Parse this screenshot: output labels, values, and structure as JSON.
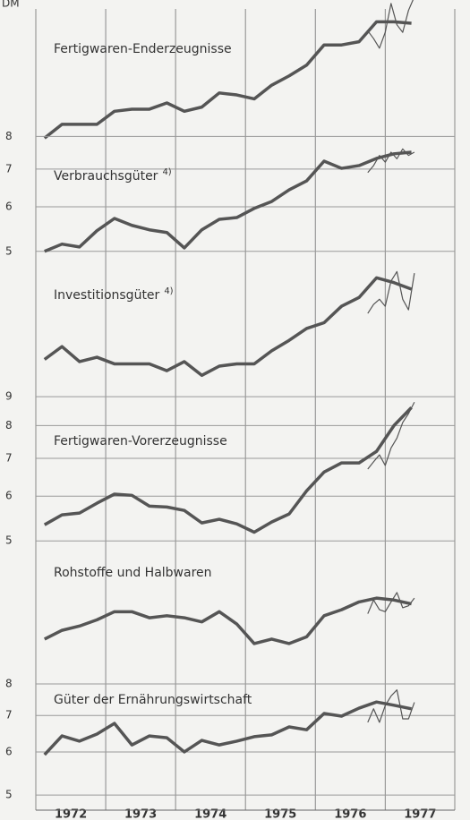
{
  "unit_label": "DM",
  "chart_data": [
    {
      "type": "line",
      "title": "Fertigwaren-Enderzeugnisse",
      "log_scale": true,
      "color": "#555555",
      "x": [
        1972.125,
        1972.375,
        1972.625,
        1972.875,
        1973.125,
        1973.375,
        1973.625,
        1973.875,
        1974.125,
        1974.375,
        1974.625,
        1974.875,
        1975.125,
        1975.375,
        1975.625,
        1975.875,
        1976.125,
        1976.375,
        1976.625,
        1976.875,
        1977.125,
        1977.375
      ],
      "values": [
        10.4,
        11.0,
        11.0,
        11.0,
        11.6,
        11.7,
        11.7,
        12.0,
        11.6,
        11.8,
        12.5,
        12.4,
        12.2,
        12.9,
        13.4,
        14.0,
        15.2,
        15.2,
        15.4,
        16.7,
        16.7,
        16.6
      ],
      "monthly_x": [
        1976.75,
        1976.833,
        1976.917,
        1977.0,
        1977.083,
        1977.167,
        1977.25,
        1977.333,
        1977.417
      ],
      "monthly_values": [
        16.1,
        15.6,
        15.0,
        16.0,
        18.0,
        16.5,
        16.0,
        17.5,
        18.5
      ],
      "ylim": [
        10,
        17.6
      ]
    },
    {
      "type": "line",
      "title": "Verbrauchsgüter",
      "note": "4)",
      "log_scale": true,
      "color": "#555555",
      "x": [
        1972.125,
        1972.375,
        1972.625,
        1972.875,
        1973.125,
        1973.375,
        1973.625,
        1973.875,
        1974.125,
        1974.375,
        1974.625,
        1974.875,
        1975.125,
        1975.375,
        1975.625,
        1975.875,
        1976.125,
        1976.375,
        1976.625,
        1976.875,
        1977.125,
        1977.375
      ],
      "values": [
        5.0,
        5.15,
        5.09,
        5.44,
        5.72,
        5.56,
        5.46,
        5.4,
        5.07,
        5.46,
        5.7,
        5.74,
        5.96,
        6.13,
        6.43,
        6.67,
        7.23,
        7.02,
        7.1,
        7.31,
        7.45,
        7.5
      ],
      "monthly_x": [
        1976.75,
        1976.833,
        1976.917,
        1977.0,
        1977.083,
        1977.167,
        1977.25,
        1977.333,
        1977.417
      ],
      "monthly_values": [
        6.9,
        7.1,
        7.4,
        7.2,
        7.5,
        7.3,
        7.6,
        7.4,
        7.5
      ],
      "ylim": [
        4.66,
        8.37
      ],
      "yticks": [
        5,
        6,
        7,
        8
      ],
      "grid": true
    },
    {
      "type": "line",
      "title": "Investitionsgüter",
      "note": "4)",
      "log_scale": true,
      "color": "#555555",
      "x": [
        1972.125,
        1972.375,
        1972.625,
        1972.875,
        1973.125,
        1973.375,
        1973.625,
        1973.875,
        1974.125,
        1974.375,
        1974.625,
        1974.875,
        1975.125,
        1975.375,
        1975.625,
        1975.875,
        1976.125,
        1976.375,
        1976.625,
        1976.875,
        1977.125,
        1977.375
      ],
      "values": [
        11.1,
        11.7,
        11.0,
        11.2,
        10.9,
        10.9,
        10.9,
        10.6,
        11.0,
        10.4,
        10.8,
        10.9,
        10.9,
        11.5,
        12.0,
        12.6,
        12.9,
        13.8,
        14.3,
        15.5,
        15.2,
        14.8
      ],
      "monthly_x": [
        1976.75,
        1976.833,
        1976.917,
        1977.0,
        1977.083,
        1977.167,
        1977.25,
        1977.333,
        1977.417
      ],
      "monthly_values": [
        13.4,
        13.9,
        14.2,
        13.8,
        15.3,
        15.9,
        14.2,
        13.6,
        15.8
      ],
      "ylim": [
        10,
        16.1
      ]
    },
    {
      "type": "line",
      "title": "Fertigwaren-Vorerzeugnisse",
      "log_scale": true,
      "color": "#555555",
      "x": [
        1972.125,
        1972.375,
        1972.625,
        1972.875,
        1973.125,
        1973.375,
        1973.625,
        1973.875,
        1974.125,
        1974.375,
        1974.625,
        1974.875,
        1975.125,
        1975.375,
        1975.625,
        1975.875,
        1976.125,
        1976.375,
        1976.625,
        1976.875,
        1977.125,
        1977.375
      ],
      "values": [
        5.34,
        5.56,
        5.6,
        5.83,
        6.05,
        6.02,
        5.76,
        5.74,
        5.66,
        5.38,
        5.46,
        5.36,
        5.18,
        5.4,
        5.58,
        6.13,
        6.62,
        6.87,
        6.87,
        7.2,
        8.0,
        8.61
      ],
      "monthly_x": [
        1976.75,
        1976.833,
        1976.917,
        1977.0,
        1977.083,
        1977.167,
        1977.25,
        1977.333,
        1977.417
      ],
      "monthly_values": [
        6.7,
        6.9,
        7.1,
        6.8,
        7.3,
        7.6,
        8.1,
        8.4,
        8.8
      ],
      "ylim": [
        4.72,
        9.44
      ],
      "yticks": [
        5,
        6,
        7,
        8,
        9
      ],
      "grid": true
    },
    {
      "type": "line",
      "title": "Rohstoffe und Halbwaren",
      "log_scale": true,
      "color": "#555555",
      "x": [
        1972.125,
        1972.375,
        1972.625,
        1972.875,
        1973.125,
        1973.375,
        1973.625,
        1973.875,
        1974.125,
        1974.375,
        1974.625,
        1974.875,
        1975.125,
        1975.375,
        1975.625,
        1975.875,
        1976.125,
        1976.375,
        1976.625,
        1976.875,
        1977.125,
        1977.375
      ],
      "values": [
        11.0,
        11.4,
        11.6,
        11.9,
        12.3,
        12.3,
        12.0,
        12.1,
        12.0,
        11.8,
        12.3,
        11.7,
        10.8,
        11.0,
        10.8,
        11.1,
        12.1,
        12.4,
        12.8,
        13.0,
        12.9,
        12.7
      ],
      "monthly_x": [
        1976.75,
        1976.833,
        1976.917,
        1977.0,
        1977.083,
        1977.167,
        1977.25,
        1977.333,
        1977.417
      ],
      "monthly_values": [
        12.2,
        12.9,
        12.4,
        12.3,
        12.8,
        13.3,
        12.5,
        12.6,
        13.0
      ],
      "ylim": [
        10,
        15.5
      ]
    },
    {
      "type": "line",
      "title": "Güter der Ernährungswirtschaft",
      "log_scale": true,
      "color": "#555555",
      "x": [
        1972.125,
        1972.375,
        1972.625,
        1972.875,
        1973.125,
        1973.375,
        1973.625,
        1973.875,
        1974.125,
        1974.375,
        1974.625,
        1974.875,
        1975.125,
        1975.375,
        1975.625,
        1975.875,
        1976.125,
        1976.375,
        1976.625,
        1976.875,
        1977.125,
        1977.375
      ],
      "values": [
        5.93,
        6.42,
        6.28,
        6.47,
        6.77,
        6.18,
        6.42,
        6.37,
        6.0,
        6.3,
        6.18,
        6.28,
        6.4,
        6.45,
        6.67,
        6.59,
        7.06,
        6.98,
        7.22,
        7.41,
        7.31,
        7.2
      ],
      "monthly_x": [
        1976.75,
        1976.833,
        1976.917,
        1977.0,
        1977.083,
        1977.167,
        1977.25,
        1977.333,
        1977.417
      ],
      "monthly_values": [
        6.8,
        7.2,
        6.8,
        7.3,
        7.6,
        7.8,
        6.9,
        6.9,
        7.4
      ],
      "ylim": [
        4.69,
        8.76
      ],
      "yticks": [
        5,
        6,
        7,
        8
      ],
      "grid": true,
      "xlim": [
        1972,
        1978.2
      ],
      "xticks": [
        1972,
        1973,
        1974,
        1975,
        1976,
        1977
      ]
    }
  ]
}
